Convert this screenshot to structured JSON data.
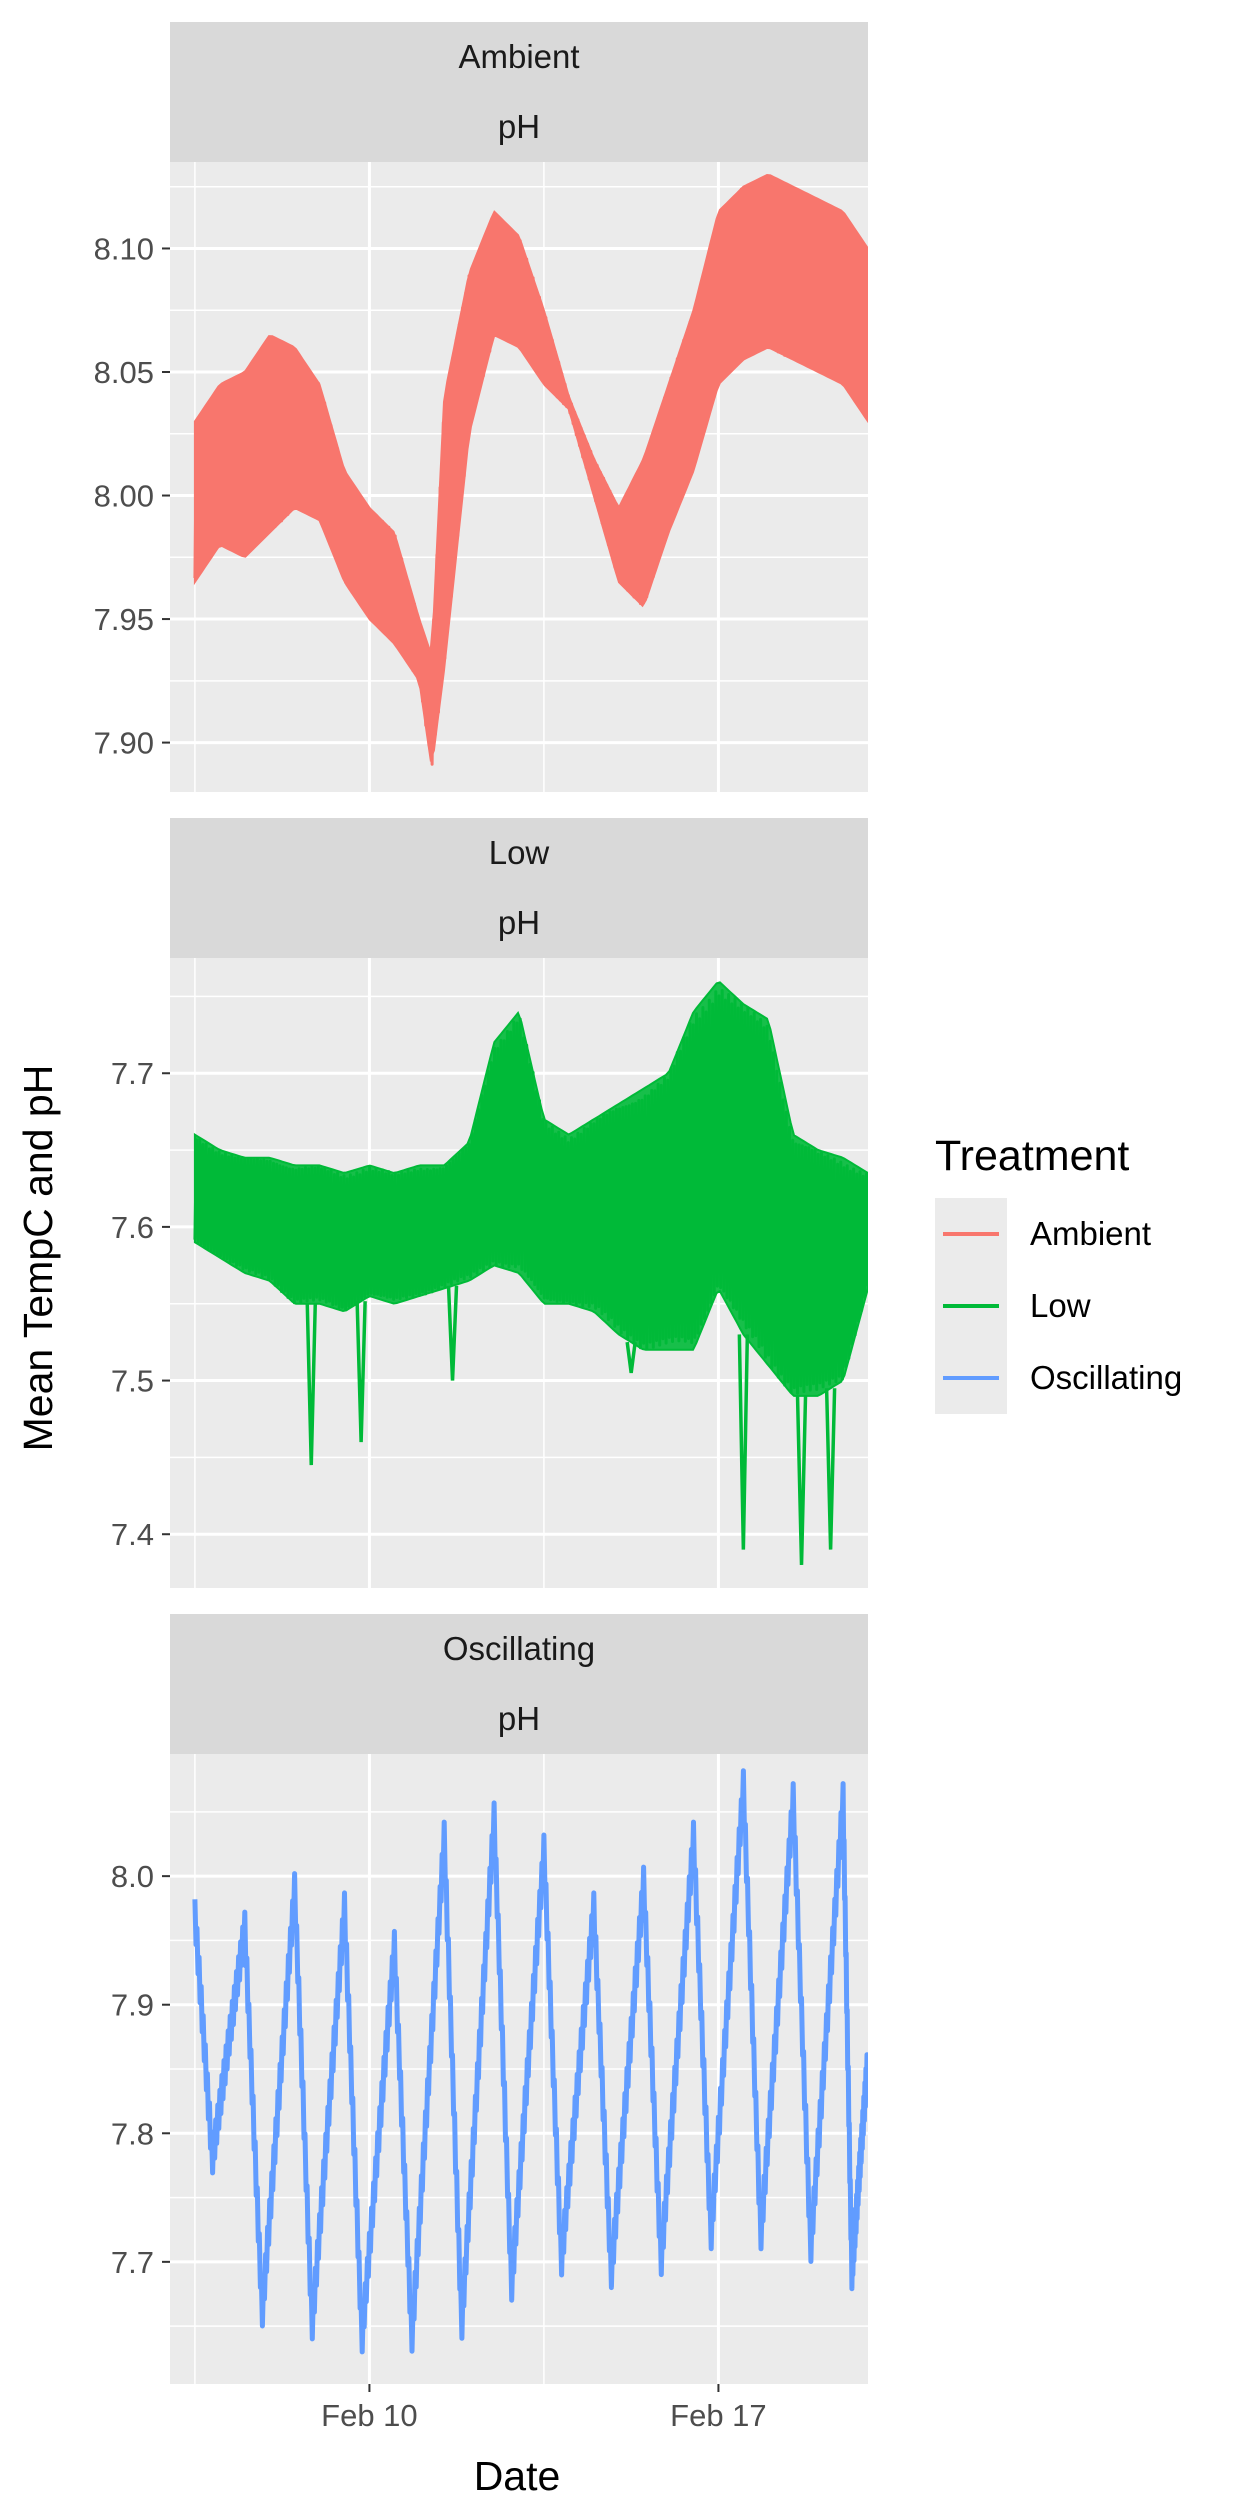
{
  "chart_data": {
    "type": "line",
    "facet_layout": "vertical",
    "xlabel": "Date",
    "ylabel": "Mean TempC and pH",
    "x_ticks": [
      "Feb 10",
      "Feb 17"
    ],
    "x_tick_dates": [
      "2023-02-10",
      "2023-02-17"
    ],
    "x_range": [
      "2023-02-06",
      "2023-02-20"
    ],
    "grid": true,
    "legend": {
      "title": "Treatment",
      "position": "right",
      "entries": [
        {
          "label": "Ambient",
          "color": "#F8766D"
        },
        {
          "label": "Low",
          "color": "#00BA38"
        },
        {
          "label": "Oscillating",
          "color": "#619CFF"
        }
      ]
    },
    "panels": [
      {
        "strip_top": "Ambient",
        "strip_bottom": "pH",
        "color": "#F8766D",
        "ylim": [
          7.88,
          8.135
        ],
        "y_ticks": [
          7.9,
          7.95,
          8.0,
          8.05,
          8.1
        ],
        "y_tick_labels": [
          "7.90",
          "7.95",
          "8.00",
          "8.05",
          "8.10"
        ],
        "band": {
          "x": [
            "2023-02-06 12:00",
            "2023-02-07 00:00",
            "2023-02-07 12:00",
            "2023-02-08 00:00",
            "2023-02-08 12:00",
            "2023-02-09 00:00",
            "2023-02-09 12:00",
            "2023-02-10 00:00",
            "2023-02-10 12:00",
            "2023-02-11 00:00",
            "2023-02-11 06:00",
            "2023-02-11 12:00",
            "2023-02-12 00:00",
            "2023-02-12 12:00",
            "2023-02-13 00:00",
            "2023-02-13 12:00",
            "2023-02-14 00:00",
            "2023-02-14 12:00",
            "2023-02-15 00:00",
            "2023-02-15 12:00",
            "2023-02-16 00:00",
            "2023-02-16 12:00",
            "2023-02-17 00:00",
            "2023-02-17 12:00",
            "2023-02-18 00:00",
            "2023-02-18 12:00",
            "2023-02-19 00:00",
            "2023-02-19 12:00",
            "2023-02-20 00:00"
          ],
          "high": [
            8.03,
            8.045,
            8.05,
            8.065,
            8.06,
            8.045,
            8.01,
            7.995,
            7.985,
            7.95,
            7.935,
            8.04,
            8.09,
            8.115,
            8.105,
            8.075,
            8.04,
            8.015,
            7.995,
            8.015,
            8.045,
            8.075,
            8.115,
            8.125,
            8.13,
            8.125,
            8.12,
            8.115,
            8.1
          ],
          "low": [
            7.965,
            7.98,
            7.975,
            7.985,
            7.995,
            7.99,
            7.965,
            7.95,
            7.94,
            7.925,
            7.89,
            7.93,
            8.025,
            8.065,
            8.06,
            8.045,
            8.035,
            8.0,
            7.965,
            7.955,
            7.985,
            8.01,
            8.045,
            8.055,
            8.06,
            8.055,
            8.05,
            8.045,
            8.03
          ]
        }
      },
      {
        "strip_top": "Low",
        "strip_bottom": "pH",
        "color": "#00BA38",
        "ylim": [
          7.365,
          7.775
        ],
        "y_ticks": [
          7.4,
          7.5,
          7.6,
          7.7
        ],
        "y_tick_labels": [
          "7.4",
          "7.5",
          "7.6",
          "7.7"
        ],
        "band": {
          "x": [
            "2023-02-06 12:00",
            "2023-02-07 00:00",
            "2023-02-07 12:00",
            "2023-02-08 00:00",
            "2023-02-08 12:00",
            "2023-02-09 00:00",
            "2023-02-09 12:00",
            "2023-02-10 00:00",
            "2023-02-10 12:00",
            "2023-02-11 00:00",
            "2023-02-11 12:00",
            "2023-02-12 00:00",
            "2023-02-12 12:00",
            "2023-02-13 00:00",
            "2023-02-13 12:00",
            "2023-02-14 00:00",
            "2023-02-14 12:00",
            "2023-02-15 00:00",
            "2023-02-15 12:00",
            "2023-02-16 00:00",
            "2023-02-16 12:00",
            "2023-02-17 00:00",
            "2023-02-17 12:00",
            "2023-02-18 00:00",
            "2023-02-18 12:00",
            "2023-02-19 00:00",
            "2023-02-19 12:00",
            "2023-02-20 00:00"
          ],
          "high": [
            7.66,
            7.65,
            7.645,
            7.645,
            7.64,
            7.64,
            7.635,
            7.64,
            7.635,
            7.64,
            7.64,
            7.655,
            7.72,
            7.74,
            7.67,
            7.66,
            7.67,
            7.68,
            7.69,
            7.7,
            7.74,
            7.76,
            7.745,
            7.735,
            7.66,
            7.65,
            7.645,
            7.635
          ],
          "low": [
            7.59,
            7.58,
            7.57,
            7.565,
            7.55,
            7.55,
            7.545,
            7.555,
            7.55,
            7.555,
            7.56,
            7.565,
            7.575,
            7.57,
            7.55,
            7.55,
            7.545,
            7.53,
            7.52,
            7.52,
            7.52,
            7.56,
            7.53,
            7.51,
            7.49,
            7.49,
            7.5,
            7.56
          ]
        },
        "dips": [
          {
            "x": "2023-02-08 20:00",
            "y": 7.445
          },
          {
            "x": "2023-02-09 20:00",
            "y": 7.46
          },
          {
            "x": "2023-02-11 16:00",
            "y": 7.5
          },
          {
            "x": "2023-02-15 06:00",
            "y": 7.505
          },
          {
            "x": "2023-02-17 12:00",
            "y": 7.39
          },
          {
            "x": "2023-02-18 16:00",
            "y": 7.38
          },
          {
            "x": "2023-02-19 06:00",
            "y": 7.39
          }
        ]
      },
      {
        "strip_top": "Oscillating",
        "strip_bottom": "pH",
        "color": "#619CFF",
        "ylim": [
          7.605,
          8.095
        ],
        "y_ticks": [
          7.7,
          7.8,
          7.9,
          8.0
        ],
        "y_tick_labels": [
          "7.7",
          "7.8",
          "7.9",
          "8.0"
        ],
        "daily_cycle": {
          "x": [
            "2023-02-06 12:00",
            "2023-02-07 12:00",
            "2023-02-08 12:00",
            "2023-02-09 12:00",
            "2023-02-10 12:00",
            "2023-02-11 12:00",
            "2023-02-12 12:00",
            "2023-02-13 12:00",
            "2023-02-14 12:00",
            "2023-02-15 12:00",
            "2023-02-16 12:00",
            "2023-02-17 12:00",
            "2023-02-18 12:00",
            "2023-02-19 12:00",
            "2023-02-20 00:00"
          ],
          "peak": [
            7.97,
            7.96,
            7.99,
            7.975,
            7.945,
            8.03,
            8.045,
            8.02,
            7.975,
            7.995,
            8.03,
            8.07,
            8.06,
            8.06,
            7.86
          ],
          "trough": [
            7.78,
            7.66,
            7.65,
            7.64,
            7.64,
            7.65,
            7.68,
            7.7,
            7.69,
            7.7,
            7.72,
            7.72,
            7.71,
            7.69,
            7.69
          ]
        }
      }
    ]
  }
}
